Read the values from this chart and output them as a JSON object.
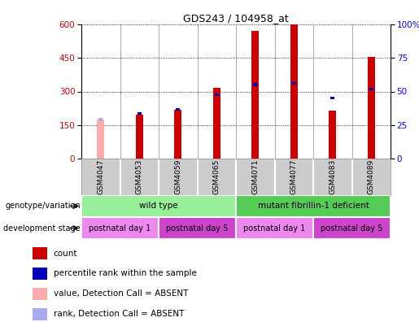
{
  "title": "GDS243 / 104958_at",
  "samples": [
    "GSM4047",
    "GSM4053",
    "GSM4059",
    "GSM4065",
    "GSM4071",
    "GSM4077",
    "GSM4083",
    "GSM4089"
  ],
  "count_values": [
    null,
    195,
    220,
    315,
    570,
    600,
    215,
    455
  ],
  "count_absent": [
    175,
    null,
    null,
    null,
    null,
    null,
    null,
    null
  ],
  "percentile_values": [
    null,
    195,
    215,
    280,
    325,
    330,
    265,
    305
  ],
  "percentile_absent": [
    175,
    null,
    null,
    null,
    null,
    null,
    null,
    null
  ],
  "ylim_left": [
    0,
    600
  ],
  "ylim_right": [
    0,
    100
  ],
  "yticks_left": [
    0,
    150,
    300,
    450,
    600
  ],
  "yticks_right": [
    0,
    25,
    50,
    75,
    100
  ],
  "ytick_right_labels": [
    "0",
    "25",
    "50",
    "75",
    "100%"
  ],
  "bar_color_red": "#cc0000",
  "bar_color_pink": "#ffaaaa",
  "bar_color_blue": "#0000bb",
  "bar_color_lightblue": "#aaaaee",
  "genotype_groups": [
    {
      "label": "wild type",
      "start": 0,
      "end": 4,
      "color": "#99ee99"
    },
    {
      "label": "mutant fibrillin-1 deficient",
      "start": 4,
      "end": 8,
      "color": "#55cc55"
    }
  ],
  "dev_groups": [
    {
      "label": "postnatal day 1",
      "start": 0,
      "end": 2,
      "color": "#ee88ee"
    },
    {
      "label": "postnatal day 5",
      "start": 2,
      "end": 4,
      "color": "#cc44cc"
    },
    {
      "label": "postnatal day 1",
      "start": 4,
      "end": 6,
      "color": "#ee88ee"
    },
    {
      "label": "postnatal day 5",
      "start": 6,
      "end": 8,
      "color": "#cc44cc"
    }
  ],
  "legend_items": [
    {
      "label": "count",
      "color": "#cc0000"
    },
    {
      "label": "percentile rank within the sample",
      "color": "#0000bb"
    },
    {
      "label": "value, Detection Call = ABSENT",
      "color": "#ffaaaa"
    },
    {
      "label": "rank, Detection Call = ABSENT",
      "color": "#aaaaee"
    }
  ],
  "bar_width": 0.18,
  "blue_bar_height": 12,
  "background_color": "#ffffff",
  "geno_label": "genotype/variation",
  "dev_label": "development stage"
}
